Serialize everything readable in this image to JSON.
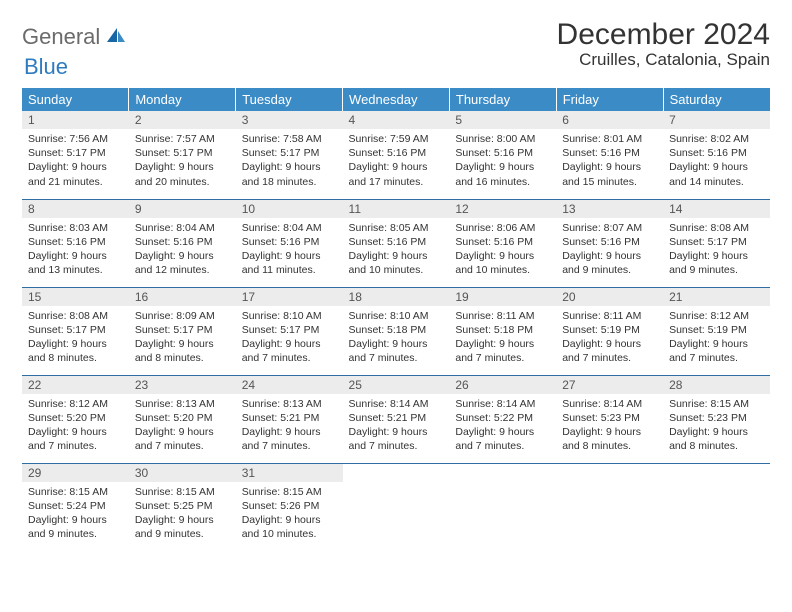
{
  "brand": {
    "part1": "General",
    "part2": "Blue"
  },
  "title": "December 2024",
  "location": "Cruilles, Catalonia, Spain",
  "colors": {
    "header_bg": "#3b8bc7",
    "row_border": "#2f6fa3",
    "daynum_bg": "#ececec",
    "brand_gray": "#6b6b6b",
    "brand_blue": "#2f7bbf"
  },
  "weekdays": [
    "Sunday",
    "Monday",
    "Tuesday",
    "Wednesday",
    "Thursday",
    "Friday",
    "Saturday"
  ],
  "weeks": [
    [
      {
        "n": "1",
        "sr": "Sunrise: 7:56 AM",
        "ss": "Sunset: 5:17 PM",
        "d1": "Daylight: 9 hours",
        "d2": "and 21 minutes."
      },
      {
        "n": "2",
        "sr": "Sunrise: 7:57 AM",
        "ss": "Sunset: 5:17 PM",
        "d1": "Daylight: 9 hours",
        "d2": "and 20 minutes."
      },
      {
        "n": "3",
        "sr": "Sunrise: 7:58 AM",
        "ss": "Sunset: 5:17 PM",
        "d1": "Daylight: 9 hours",
        "d2": "and 18 minutes."
      },
      {
        "n": "4",
        "sr": "Sunrise: 7:59 AM",
        "ss": "Sunset: 5:16 PM",
        "d1": "Daylight: 9 hours",
        "d2": "and 17 minutes."
      },
      {
        "n": "5",
        "sr": "Sunrise: 8:00 AM",
        "ss": "Sunset: 5:16 PM",
        "d1": "Daylight: 9 hours",
        "d2": "and 16 minutes."
      },
      {
        "n": "6",
        "sr": "Sunrise: 8:01 AM",
        "ss": "Sunset: 5:16 PM",
        "d1": "Daylight: 9 hours",
        "d2": "and 15 minutes."
      },
      {
        "n": "7",
        "sr": "Sunrise: 8:02 AM",
        "ss": "Sunset: 5:16 PM",
        "d1": "Daylight: 9 hours",
        "d2": "and 14 minutes."
      }
    ],
    [
      {
        "n": "8",
        "sr": "Sunrise: 8:03 AM",
        "ss": "Sunset: 5:16 PM",
        "d1": "Daylight: 9 hours",
        "d2": "and 13 minutes."
      },
      {
        "n": "9",
        "sr": "Sunrise: 8:04 AM",
        "ss": "Sunset: 5:16 PM",
        "d1": "Daylight: 9 hours",
        "d2": "and 12 minutes."
      },
      {
        "n": "10",
        "sr": "Sunrise: 8:04 AM",
        "ss": "Sunset: 5:16 PM",
        "d1": "Daylight: 9 hours",
        "d2": "and 11 minutes."
      },
      {
        "n": "11",
        "sr": "Sunrise: 8:05 AM",
        "ss": "Sunset: 5:16 PM",
        "d1": "Daylight: 9 hours",
        "d2": "and 10 minutes."
      },
      {
        "n": "12",
        "sr": "Sunrise: 8:06 AM",
        "ss": "Sunset: 5:16 PM",
        "d1": "Daylight: 9 hours",
        "d2": "and 10 minutes."
      },
      {
        "n": "13",
        "sr": "Sunrise: 8:07 AM",
        "ss": "Sunset: 5:16 PM",
        "d1": "Daylight: 9 hours",
        "d2": "and 9 minutes."
      },
      {
        "n": "14",
        "sr": "Sunrise: 8:08 AM",
        "ss": "Sunset: 5:17 PM",
        "d1": "Daylight: 9 hours",
        "d2": "and 9 minutes."
      }
    ],
    [
      {
        "n": "15",
        "sr": "Sunrise: 8:08 AM",
        "ss": "Sunset: 5:17 PM",
        "d1": "Daylight: 9 hours",
        "d2": "and 8 minutes."
      },
      {
        "n": "16",
        "sr": "Sunrise: 8:09 AM",
        "ss": "Sunset: 5:17 PM",
        "d1": "Daylight: 9 hours",
        "d2": "and 8 minutes."
      },
      {
        "n": "17",
        "sr": "Sunrise: 8:10 AM",
        "ss": "Sunset: 5:17 PM",
        "d1": "Daylight: 9 hours",
        "d2": "and 7 minutes."
      },
      {
        "n": "18",
        "sr": "Sunrise: 8:10 AM",
        "ss": "Sunset: 5:18 PM",
        "d1": "Daylight: 9 hours",
        "d2": "and 7 minutes."
      },
      {
        "n": "19",
        "sr": "Sunrise: 8:11 AM",
        "ss": "Sunset: 5:18 PM",
        "d1": "Daylight: 9 hours",
        "d2": "and 7 minutes."
      },
      {
        "n": "20",
        "sr": "Sunrise: 8:11 AM",
        "ss": "Sunset: 5:19 PM",
        "d1": "Daylight: 9 hours",
        "d2": "and 7 minutes."
      },
      {
        "n": "21",
        "sr": "Sunrise: 8:12 AM",
        "ss": "Sunset: 5:19 PM",
        "d1": "Daylight: 9 hours",
        "d2": "and 7 minutes."
      }
    ],
    [
      {
        "n": "22",
        "sr": "Sunrise: 8:12 AM",
        "ss": "Sunset: 5:20 PM",
        "d1": "Daylight: 9 hours",
        "d2": "and 7 minutes."
      },
      {
        "n": "23",
        "sr": "Sunrise: 8:13 AM",
        "ss": "Sunset: 5:20 PM",
        "d1": "Daylight: 9 hours",
        "d2": "and 7 minutes."
      },
      {
        "n": "24",
        "sr": "Sunrise: 8:13 AM",
        "ss": "Sunset: 5:21 PM",
        "d1": "Daylight: 9 hours",
        "d2": "and 7 minutes."
      },
      {
        "n": "25",
        "sr": "Sunrise: 8:14 AM",
        "ss": "Sunset: 5:21 PM",
        "d1": "Daylight: 9 hours",
        "d2": "and 7 minutes."
      },
      {
        "n": "26",
        "sr": "Sunrise: 8:14 AM",
        "ss": "Sunset: 5:22 PM",
        "d1": "Daylight: 9 hours",
        "d2": "and 7 minutes."
      },
      {
        "n": "27",
        "sr": "Sunrise: 8:14 AM",
        "ss": "Sunset: 5:23 PM",
        "d1": "Daylight: 9 hours",
        "d2": "and 8 minutes."
      },
      {
        "n": "28",
        "sr": "Sunrise: 8:15 AM",
        "ss": "Sunset: 5:23 PM",
        "d1": "Daylight: 9 hours",
        "d2": "and 8 minutes."
      }
    ],
    [
      {
        "n": "29",
        "sr": "Sunrise: 8:15 AM",
        "ss": "Sunset: 5:24 PM",
        "d1": "Daylight: 9 hours",
        "d2": "and 9 minutes."
      },
      {
        "n": "30",
        "sr": "Sunrise: 8:15 AM",
        "ss": "Sunset: 5:25 PM",
        "d1": "Daylight: 9 hours",
        "d2": "and 9 minutes."
      },
      {
        "n": "31",
        "sr": "Sunrise: 8:15 AM",
        "ss": "Sunset: 5:26 PM",
        "d1": "Daylight: 9 hours",
        "d2": "and 10 minutes."
      },
      null,
      null,
      null,
      null
    ]
  ]
}
